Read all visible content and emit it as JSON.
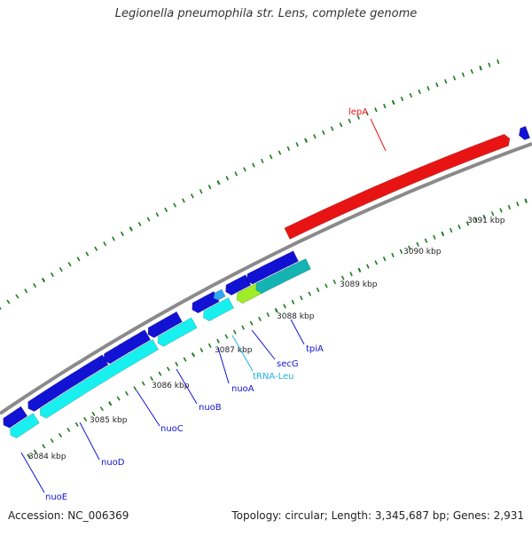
{
  "title": "Legionella pneumophila str. Lens, complete genome",
  "accession": "Accession: NC_006369",
  "genome_summary": "Topology: circular; Length: 3,345,687 bp; Genes: 2,931",
  "scale": {
    "unit": "kbp",
    "labels": [
      "3084 kbp",
      "3085 kbp",
      "3086 kbp",
      "3087 kbp",
      "3088 kbp",
      "3089 kbp",
      "3090 kbp",
      "3091 kbp"
    ]
  },
  "colors": {
    "backbone": "#8a8a8a",
    "forward_gene": "#e81414",
    "reverse_gene": "#1212d4",
    "reverse_cds": "#18f0f0",
    "reverse_cds_alt": "#14b4b4",
    "trna": "#30a8f0",
    "other_feature": "#a0ec28",
    "tick": "#1c7a1c",
    "label_forward": "#e81414",
    "label_reverse": "#1212d4",
    "label_trna": "#20b0e8"
  },
  "genes": [
    {
      "name": "lepA",
      "strand": "forward",
      "type": "gene",
      "labelled": true
    },
    {
      "name": "tpiA",
      "strand": "reverse",
      "type": "gene",
      "labelled": true
    },
    {
      "name": "secG",
      "strand": "reverse",
      "type": "gene",
      "labelled": true
    },
    {
      "name": "tRNA-Leu",
      "strand": "reverse",
      "type": "tRNA",
      "labelled": true
    },
    {
      "name": "nuoA",
      "strand": "reverse",
      "type": "gene",
      "labelled": true
    },
    {
      "name": "nuoB",
      "strand": "reverse",
      "type": "gene",
      "labelled": true
    },
    {
      "name": "nuoC",
      "strand": "reverse",
      "type": "gene",
      "labelled": true
    },
    {
      "name": "nuoD",
      "strand": "reverse",
      "type": "gene",
      "labelled": true
    },
    {
      "name": "nuoE",
      "strand": "reverse",
      "type": "gene",
      "labelled": true
    }
  ]
}
